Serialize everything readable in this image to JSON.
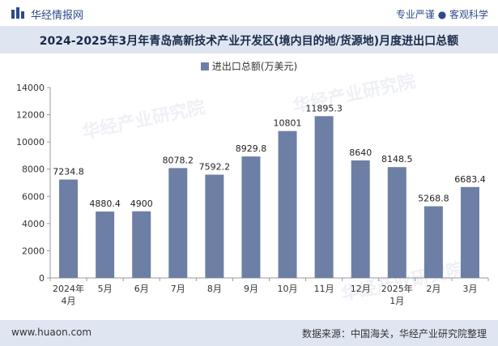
{
  "header": {
    "brand": "华经情报网",
    "slogan": "专业严谨 ● 客观科学"
  },
  "chart_data": {
    "type": "bar",
    "title": "2024-2025年3月年青岛高新技术产业开发区(境内目的地/货源地)月度进出口总额",
    "categories": [
      "2024年\n4月",
      "5月",
      "6月",
      "7月",
      "8月",
      "9月",
      "10月",
      "11月",
      "12月",
      "2025年\n1月",
      "2月",
      "3月"
    ],
    "series": [
      {
        "name": "进出口总额(万美元)",
        "values": [
          7234.8,
          4880.4,
          4900,
          8078.2,
          7592.2,
          8929.8,
          10801,
          11895.3,
          8640,
          8148.5,
          5268.8,
          6683.4
        ],
        "labels": [
          "7234.8",
          "4880.4",
          "4900",
          "8078.2",
          "7592.2",
          "8929.8",
          "10801",
          "11895.3",
          "8640",
          "8148.5",
          "5268.8",
          "6683.4"
        ],
        "color": "#6e7fa6"
      }
    ],
    "yticks": [
      "0",
      "2000",
      "4000",
      "6000",
      "8000",
      "10000",
      "12000",
      "14000"
    ],
    "ylim": [
      0,
      14000
    ],
    "grid": false,
    "legend": "top"
  },
  "watermark": "华经产业研究院",
  "footer": {
    "site": "www.huaon.com",
    "source": "数据来源：中国海关，华经产业研究院整理"
  }
}
